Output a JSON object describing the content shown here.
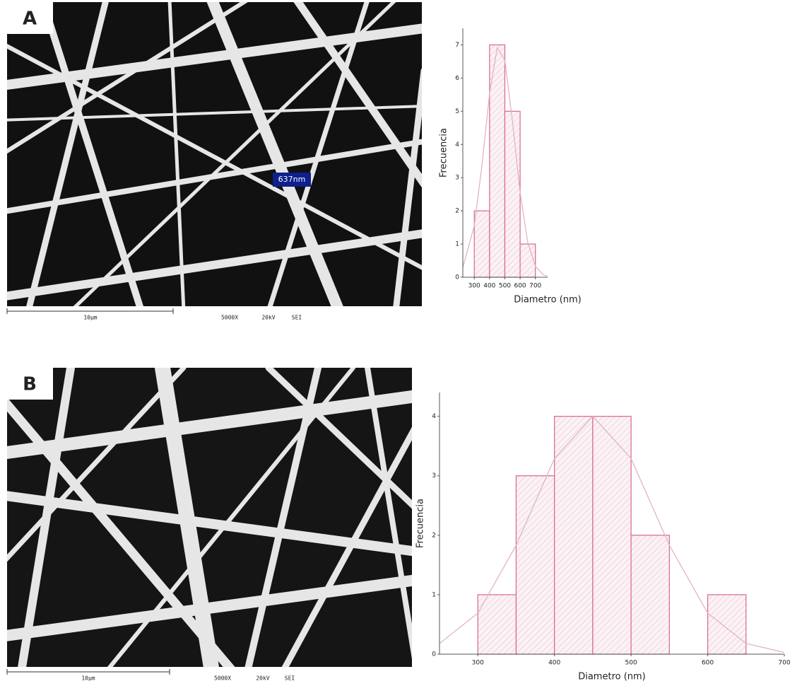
{
  "panels": [
    {
      "label": "A",
      "annotation": "637nm",
      "scale_bar": "10µm",
      "magnification": "5000X",
      "voltage": "20kV",
      "detector": "SEI"
    },
    {
      "label": "B",
      "scale_bar": "10µm",
      "magnification": "5000X",
      "voltage": "20kV",
      "detector": "SEI"
    }
  ],
  "chart_data": [
    {
      "type": "histogram",
      "xlabel": "Diametro (nm)",
      "ylabel": "Frecuencia",
      "bins": [
        300,
        400,
        500,
        600,
        700
      ],
      "values": [
        2,
        7,
        5,
        1
      ],
      "color": "#d9678c",
      "xlim": [
        225,
        780
      ],
      "ylim": [
        0,
        7.5
      ],
      "xticks": [
        300,
        400,
        500,
        600,
        700
      ],
      "yticks": [
        0,
        1,
        2,
        3,
        4,
        5,
        6,
        7
      ],
      "fit": {
        "color": "#e3b3c4",
        "x": [
          225,
          300,
          350,
          400,
          450,
          500,
          550,
          600,
          650,
          700,
          750,
          780
        ],
        "values": [
          0.29,
          1.55,
          3.36,
          5.54,
          6.91,
          6.54,
          4.69,
          2.55,
          1.05,
          0.33,
          0.08,
          0.03
        ]
      }
    },
    {
      "type": "histogram",
      "xlabel": "Diametro (nm)",
      "ylabel": "Frecuencia",
      "bins": [
        300,
        350,
        400,
        450,
        500,
        550,
        600,
        650
      ],
      "values": [
        1,
        3,
        4,
        4,
        2,
        0,
        1
      ],
      "color": "#d9678c",
      "xlim": [
        250,
        700
      ],
      "ylim": [
        0,
        4.4
      ],
      "xticks": [
        300,
        400,
        500,
        600,
        700
      ],
      "yticks": [
        0,
        1,
        2,
        3,
        4
      ],
      "fit": {
        "color": "#e3b3c4",
        "x": [
          250,
          300,
          350,
          400,
          450,
          500,
          550,
          600,
          650,
          700
        ],
        "values": [
          0.18,
          0.69,
          1.83,
          3.29,
          4,
          3.29,
          1.83,
          0.69,
          0.18,
          0.03
        ]
      }
    }
  ]
}
